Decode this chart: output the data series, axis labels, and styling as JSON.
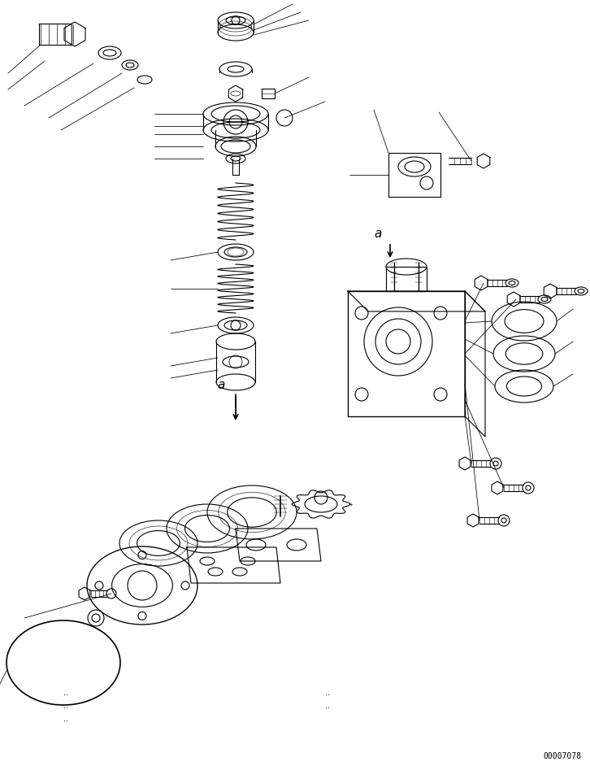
{
  "background_color": "#ffffff",
  "figure_width": 7.26,
  "figure_height": 9.42,
  "dpi": 100,
  "serial_number": "00007078",
  "line_color": "#000000",
  "line_width": 0.8
}
